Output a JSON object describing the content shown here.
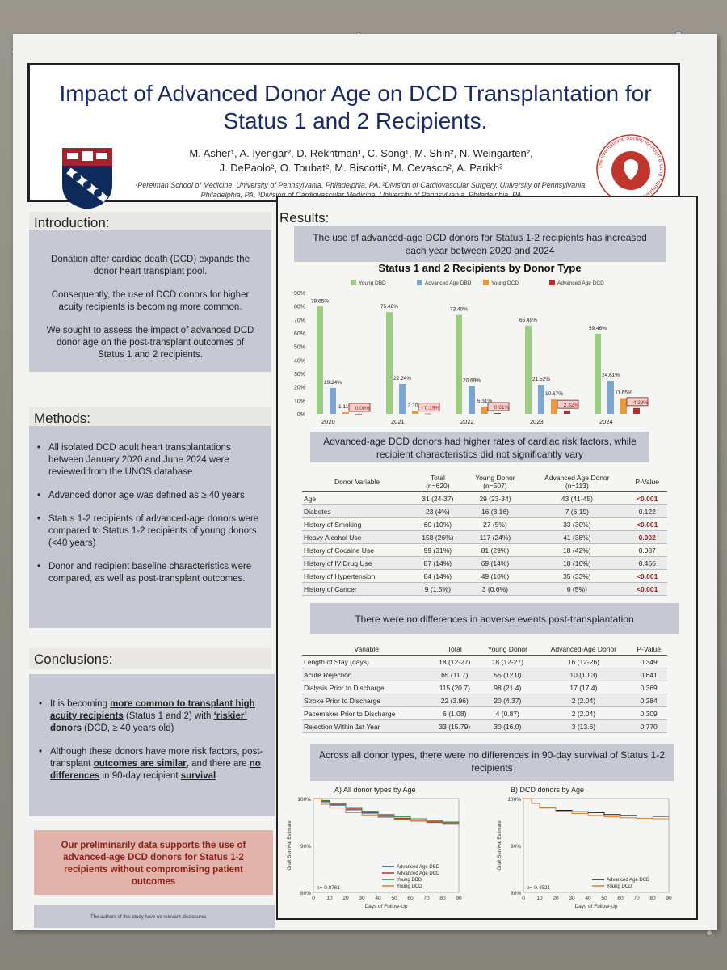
{
  "poster": {
    "title": "Impact of Advanced Donor Age on DCD Transplantation for Status 1 and 2 Recipients.",
    "authors_line1": "M. Asher¹, A. Iyengar², D. Rekhtman¹, C. Song¹, M. Shin², N. Weingarten²,",
    "authors_line2": "J. DePaolo², O. Toubat², M. Biscotti², M. Cevasco², A. Parikh³",
    "affiliations": "¹Perelman School of Medicine, University of Pennsylvania, Philadelphia, PA, ²Division of Cardiovascular Surgery, University of Pennsylvania, Philadelphia, PA, ³Division of Cardiovascular Medicine, University of Pennsylvania, Philadelphia, PA",
    "seal_text": "The International Society for Heart & Lung Transplantation"
  },
  "intro": {
    "heading": "Introduction:",
    "p1": "Donation after cardiac death (DCD) expands the donor heart transplant pool.",
    "p2": "Consequently, the use of DCD donors for higher acuity recipients is becoming more common.",
    "p3": "We sought to assess the impact of advanced DCD donor age on the post-transplant outcomes of Status 1 and 2 recipients."
  },
  "methods": {
    "heading": "Methods:",
    "items": [
      "All isolated DCD adult heart transplantations between January 2020 and June 2024 were reviewed from the UNOS database",
      "Advanced donor age was defined as ≥ 40 years",
      "Status 1-2 recipients of  advanced-age donors were compared to Status 1-2 recipients of young donors (<40 years)",
      "Donor and recipient baseline characteristics were compared, as well as post-transplant outcomes."
    ]
  },
  "conclusions": {
    "heading": "Conclusions:",
    "b1_a": "It is becoming ",
    "b1_b": "more common to transplant high acuity recipients",
    "b1_c": " (Status 1 and 2) with ",
    "b1_d": "‘riskier’ donors",
    "b1_e": " (DCD, ≥ 40 years old)",
    "b2_a": "Although these donors have more risk factors, post-transplant ",
    "b2_b": "outcomes are similar",
    "b2_c": ", and there are ",
    "b2_d": "no differences",
    "b2_e": " in 90-day recipient ",
    "b2_f": "survival",
    "final": "Our preliminarily data supports the use of advanced-age DCD donors for Status 1-2 recipients without compromising patient outcomes",
    "disclosure": "The authors of this study have no relevant disclosures"
  },
  "results": {
    "heading": "Results:",
    "callout1": "The use of advanced-age DCD donors for Status 1-2 recipients has increased each year between 2020 and 2024",
    "callout2": "Advanced-age DCD donors had higher rates of cardiac risk factors, while recipient characteristics did not significantly vary",
    "callout3": "There were no differences in adverse events post-transplantation",
    "callout4": "Across all donor types, there were no differences in 90-day survival of Status 1-2 recipients"
  },
  "colors": {
    "young_dbd": "#9ccc7f",
    "adv_dbd": "#7aa6cf",
    "young_dcd": "#e8993e",
    "adv_dcd": "#b5302a"
  },
  "chart_data": [
    {
      "type": "bar",
      "title": "Status 1 and 2 Recipients by Donor Type",
      "categories": [
        "2020",
        "2021",
        "2022",
        "2023",
        "2024"
      ],
      "series": [
        {
          "name": "Young DBD",
          "values": [
            79.65,
            75.48,
            73.4,
            65.49,
            59.46
          ],
          "labels": [
            "79.65%",
            "75.48%",
            "73.40%",
            "65.49%",
            "59.46%"
          ]
        },
        {
          "name": "Advanced Age DBD",
          "values": [
            19.24,
            22.24,
            20.69,
            21.52,
            24.61
          ],
          "labels": [
            "19.24%",
            "22.24%",
            "20.69%",
            "21.52%",
            "24.61%"
          ]
        },
        {
          "name": "Young DCD",
          "values": [
            1.11,
            2.1,
            5.31,
            10.67,
            11.65
          ],
          "labels": [
            "1.11%",
            "2.10%",
            "5.31%",
            "10.67%",
            "11.65%"
          ]
        },
        {
          "name": "Advanced Age DCD",
          "values": [
            0.0,
            0.19,
            0.61,
            2.32,
            4.29
          ],
          "labels": [
            "0.00%",
            "0.19%",
            "0.61%",
            "2.32%",
            "4.29%"
          ]
        }
      ],
      "ylim": [
        0,
        90
      ],
      "yticks": [
        "0%",
        "10%",
        "20%",
        "30%",
        "40%",
        "50%",
        "60%",
        "70%",
        "80%",
        "90%"
      ]
    },
    {
      "type": "line",
      "title": "A) All donor types by Age",
      "xlabel": "Days of Follow-Up",
      "ylabel": "Graft Survival Estimate",
      "xticks": [
        "0",
        "10",
        "20",
        "30",
        "40",
        "50",
        "60",
        "70",
        "80",
        "90"
      ],
      "yticks": [
        "80%",
        "90%",
        "100%"
      ],
      "ylim": [
        80,
        100
      ],
      "pvalue": "p= 0.9761",
      "series": [
        {
          "name": "Advanced Age DBD",
          "x": [
            0,
            5,
            10,
            20,
            30,
            40,
            50,
            60,
            70,
            80,
            90
          ],
          "y": [
            100,
            99.3,
            98.6,
            97.6,
            96.9,
            96.2,
            95.7,
            95.2,
            94.9,
            94.7,
            94.6
          ]
        },
        {
          "name": "Advanced Age DCD",
          "x": [
            0,
            5,
            10,
            20,
            30,
            40,
            50,
            60,
            70,
            80,
            90
          ],
          "y": [
            100,
            99.5,
            98.8,
            97.8,
            97.0,
            96.4,
            95.8,
            95.4,
            95.1,
            94.9,
            94.8
          ]
        },
        {
          "name": "Young DBD",
          "x": [
            0,
            5,
            10,
            20,
            30,
            40,
            50,
            60,
            70,
            80,
            90
          ],
          "y": [
            100,
            99.6,
            99.0,
            98.1,
            97.3,
            96.6,
            96.1,
            95.7,
            95.3,
            95.0,
            94.9
          ]
        },
        {
          "name": "Young DCD",
          "x": [
            0,
            5,
            10,
            20,
            30,
            40,
            50,
            60,
            70,
            80,
            90
          ],
          "y": [
            100,
            98.8,
            98.0,
            97.0,
            96.5,
            96.0,
            95.5,
            95.2,
            95.0,
            94.8,
            94.7
          ]
        }
      ]
    },
    {
      "type": "line",
      "title": "B) DCD donors by Age",
      "xlabel": "Days of Follow-Up",
      "ylabel": "Graft Survival Estimate",
      "xticks": [
        "0",
        "10",
        "20",
        "30",
        "40",
        "50",
        "60",
        "70",
        "80",
        "90"
      ],
      "yticks": [
        "80%",
        "90%",
        "100%"
      ],
      "ylim": [
        80,
        100
      ],
      "pvalue": "p= 0.4521",
      "series": [
        {
          "name": "Advanced Age DCD",
          "x": [
            0,
            5,
            10,
            20,
            30,
            40,
            50,
            60,
            70,
            80,
            90
          ],
          "y": [
            100,
            99.0,
            98.0,
            97.5,
            97.2,
            97.0,
            96.6,
            96.4,
            96.3,
            96.2,
            96.2
          ]
        },
        {
          "name": "Young DCD",
          "x": [
            0,
            5,
            10,
            20,
            30,
            40,
            50,
            60,
            70,
            80,
            90
          ],
          "y": [
            100,
            99.0,
            98.2,
            97.3,
            96.8,
            96.4,
            96.1,
            95.9,
            95.8,
            95.7,
            95.7
          ]
        }
      ]
    }
  ],
  "table1": {
    "headers": [
      "Donor Variable",
      "Total\n(n=620)",
      "Young Donor\n(n=507)",
      "Advanced Age Donor\n(n=113)",
      "P-Value"
    ],
    "rows": [
      [
        "Age",
        "31 (24-37)",
        "29 (23-34)",
        "43 (41-45)",
        "<0.001"
      ],
      [
        "Diabetes",
        "23 (4%)",
        "16 (3.16)",
        "7 (6.19)",
        "0.122"
      ],
      [
        "History of Smoking",
        "60 (10%)",
        "27 (5%)",
        "33 (30%)",
        "<0.001"
      ],
      [
        "Heavy Alcohol Use",
        "158 (26%)",
        "117 (24%)",
        "41 (38%)",
        "0.002"
      ],
      [
        "History of Cocaine Use",
        "99 (31%)",
        "81 (29%)",
        "18 (42%)",
        "0.087"
      ],
      [
        "History of IV Drug Use",
        "87 (14%)",
        "69 (14%)",
        "18 (16%)",
        "0.466"
      ],
      [
        "History of Hypertension",
        "84 (14%)",
        "49 (10%)",
        "35 (33%)",
        "<0.001"
      ],
      [
        "History of Cancer",
        "9 (1.5%)",
        "3 (0.6%)",
        "6 (5%)",
        "<0.001"
      ]
    ],
    "sig_rows": [
      0,
      2,
      3,
      6,
      7
    ]
  },
  "table2": {
    "headers": [
      "Variable",
      "Total",
      "Young Donor",
      "Advanced-Age Donor",
      "P-Value"
    ],
    "rows": [
      [
        "Length of Stay (days)",
        "18 (12-27)",
        "18 (12-27)",
        "16 (12-26)",
        "0.349"
      ],
      [
        "Acute Rejection",
        "65 (11.7)",
        "55 (12.0)",
        "10 (10.3)",
        "0.641"
      ],
      [
        "Dialysis Prior to Discharge",
        "115 (20.7)",
        "98 (21.4)",
        "17 (17.4)",
        "0.369"
      ],
      [
        "Stroke Prior to Discharge",
        "22 (3.96)",
        "20 (4.37)",
        "2 (2.04)",
        "0.284"
      ],
      [
        "Pacemaker Prior to Discharge",
        "6 (1.08)",
        "4 (0.87)",
        "2 (2.04)",
        "0.309"
      ],
      [
        "Rejection Within 1st Year",
        "33 (15.79)",
        "30 (16.0)",
        "3 (13.6)",
        "0.770"
      ]
    ]
  }
}
